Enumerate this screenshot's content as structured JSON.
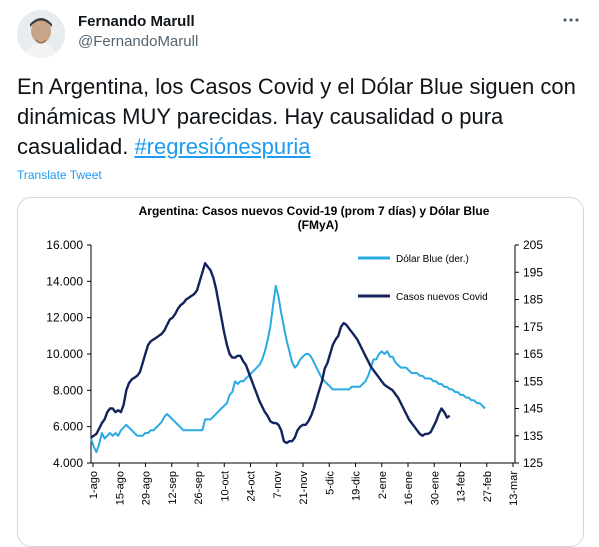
{
  "tweet": {
    "author_name": "Fernando Marull",
    "handle": "@FernandoMarull",
    "text": "En Argentina, los Casos Covid y el Dólar Blue siguen con dinámicas MUY parecidas. Hay causalidad o pura casualidad.",
    "hashtag": "#regresiónespuria",
    "translate_label": "Translate Tweet",
    "more_icon": "more-horizontal-icon"
  },
  "chart_data": {
    "type": "line",
    "title": "Argentina: Casos nuevos Covid-19 (prom 7 días) y Dólar  Blue",
    "subtitle": "(FMyA)",
    "x_tick_labels": [
      "1-ago",
      "15-ago",
      "29-ago",
      "12-sep",
      "26-sep",
      "10-oct",
      "24-oct",
      "7-nov",
      "21-nov",
      "5-dic",
      "19-dic",
      "2-ene",
      "16-ene",
      "30-ene",
      "13-feb",
      "27-feb",
      "13-mar"
    ],
    "y_left_ticks": [
      "16.000",
      "14.000",
      "12.000",
      "10.000",
      "8.000",
      "6.000",
      "4.000"
    ],
    "y_left_range": [
      4000,
      16000
    ],
    "y_right_ticks": [
      "205",
      "195",
      "185",
      "175",
      "165",
      "155",
      "145",
      "135",
      "125"
    ],
    "y_right_range": [
      125,
      205
    ],
    "grid": false,
    "legend_placement": "top-right",
    "series": [
      {
        "name": "Dólar Blue (der.)",
        "axis": "right",
        "color": "#29abe2",
        "points": [
          [
            0,
            134
          ],
          [
            1,
            131
          ],
          [
            2,
            129
          ],
          [
            3,
            132
          ],
          [
            4,
            136
          ],
          [
            5,
            134
          ],
          [
            6,
            135
          ],
          [
            7,
            136
          ],
          [
            8,
            135
          ],
          [
            9,
            136
          ],
          [
            10,
            135
          ],
          [
            11,
            137
          ],
          [
            12,
            138
          ],
          [
            13,
            139
          ],
          [
            14,
            138
          ],
          [
            15,
            137
          ],
          [
            16,
            136
          ],
          [
            17,
            135
          ],
          [
            18,
            135
          ],
          [
            19,
            135
          ],
          [
            20,
            136
          ],
          [
            21,
            136
          ],
          [
            22,
            137
          ],
          [
            23,
            137
          ],
          [
            24,
            138
          ],
          [
            25,
            139
          ],
          [
            26,
            140
          ],
          [
            27,
            142
          ],
          [
            28,
            143
          ],
          [
            29,
            142
          ],
          [
            30,
            141
          ],
          [
            31,
            140
          ],
          [
            32,
            139
          ],
          [
            33,
            138
          ],
          [
            34,
            137
          ],
          [
            35,
            137
          ],
          [
            36,
            137
          ],
          [
            37,
            137
          ],
          [
            38,
            137
          ],
          [
            39,
            137
          ],
          [
            40,
            137
          ],
          [
            41,
            137
          ],
          [
            42,
            141
          ],
          [
            43,
            141
          ],
          [
            44,
            141
          ],
          [
            45,
            142
          ],
          [
            46,
            143
          ],
          [
            47,
            144
          ],
          [
            48,
            145
          ],
          [
            49,
            146
          ],
          [
            50,
            147
          ],
          [
            51,
            150
          ],
          [
            52,
            151
          ],
          [
            53,
            155
          ],
          [
            54,
            154
          ],
          [
            55,
            155
          ],
          [
            56,
            155
          ],
          [
            57,
            156
          ],
          [
            58,
            157
          ],
          [
            59,
            158
          ],
          [
            60,
            159
          ],
          [
            61,
            160
          ],
          [
            62,
            161
          ],
          [
            63,
            163
          ],
          [
            64,
            166
          ],
          [
            65,
            170
          ],
          [
            66,
            175
          ],
          [
            67,
            183
          ],
          [
            68,
            190
          ],
          [
            69,
            186
          ],
          [
            70,
            180
          ],
          [
            71,
            175
          ],
          [
            72,
            170
          ],
          [
            73,
            166
          ],
          [
            74,
            162
          ],
          [
            75,
            160
          ],
          [
            76,
            161
          ],
          [
            77,
            163
          ],
          [
            78,
            164
          ],
          [
            79,
            165
          ],
          [
            80,
            165
          ],
          [
            81,
            164
          ],
          [
            82,
            162
          ],
          [
            83,
            160
          ],
          [
            84,
            158
          ],
          [
            85,
            156
          ],
          [
            86,
            155
          ],
          [
            87,
            154
          ],
          [
            88,
            153
          ],
          [
            89,
            152
          ],
          [
            90,
            152
          ],
          [
            91,
            152
          ],
          [
            92,
            152
          ],
          [
            93,
            152
          ],
          [
            94,
            152
          ],
          [
            95,
            152
          ],
          [
            96,
            153
          ],
          [
            97,
            153
          ],
          [
            98,
            153
          ],
          [
            99,
            153
          ],
          [
            100,
            154
          ],
          [
            101,
            155
          ],
          [
            102,
            157
          ],
          [
            103,
            160
          ],
          [
            104,
            163
          ],
          [
            105,
            163
          ],
          [
            106,
            165
          ],
          [
            107,
            166
          ],
          [
            108,
            165
          ],
          [
            109,
            166
          ],
          [
            110,
            164
          ],
          [
            111,
            164
          ],
          [
            112,
            162
          ],
          [
            113,
            161
          ],
          [
            114,
            160
          ],
          [
            115,
            160
          ],
          [
            116,
            160
          ],
          [
            117,
            159
          ],
          [
            118,
            158
          ],
          [
            119,
            158
          ],
          [
            120,
            158
          ],
          [
            121,
            157
          ],
          [
            122,
            157
          ],
          [
            123,
            156
          ],
          [
            124,
            156
          ],
          [
            125,
            156
          ],
          [
            126,
            155
          ],
          [
            127,
            155
          ],
          [
            128,
            154
          ],
          [
            129,
            154
          ],
          [
            130,
            153
          ],
          [
            131,
            153
          ],
          [
            132,
            152
          ],
          [
            133,
            152
          ],
          [
            134,
            151
          ],
          [
            135,
            151
          ],
          [
            136,
            150
          ],
          [
            137,
            150
          ],
          [
            138,
            149
          ],
          [
            139,
            149
          ],
          [
            140,
            148
          ],
          [
            141,
            148
          ],
          [
            142,
            147
          ],
          [
            143,
            147
          ],
          [
            144,
            146
          ],
          [
            145,
            145
          ]
        ]
      },
      {
        "name": "Casos nuevos Covid",
        "axis": "left",
        "color": "#13235b",
        "points": [
          [
            0,
            5400
          ],
          [
            1,
            5500
          ],
          [
            2,
            5600
          ],
          [
            3,
            5900
          ],
          [
            4,
            6200
          ],
          [
            5,
            6400
          ],
          [
            6,
            6800
          ],
          [
            7,
            7000
          ],
          [
            8,
            7000
          ],
          [
            9,
            6800
          ],
          [
            10,
            6900
          ],
          [
            11,
            6800
          ],
          [
            12,
            7200
          ],
          [
            13,
            8000
          ],
          [
            14,
            8400
          ],
          [
            15,
            8600
          ],
          [
            16,
            8700
          ],
          [
            17,
            8800
          ],
          [
            18,
            9000
          ],
          [
            19,
            9500
          ],
          [
            20,
            10000
          ],
          [
            21,
            10500
          ],
          [
            22,
            10700
          ],
          [
            23,
            10800
          ],
          [
            24,
            10900
          ],
          [
            25,
            11000
          ],
          [
            26,
            11100
          ],
          [
            27,
            11300
          ],
          [
            28,
            11600
          ],
          [
            29,
            11900
          ],
          [
            30,
            12000
          ],
          [
            31,
            12200
          ],
          [
            32,
            12500
          ],
          [
            33,
            12700
          ],
          [
            34,
            12800
          ],
          [
            35,
            13000
          ],
          [
            36,
            13100
          ],
          [
            37,
            13200
          ],
          [
            38,
            13300
          ],
          [
            39,
            13500
          ],
          [
            40,
            14000
          ],
          [
            41,
            14500
          ],
          [
            42,
            15000
          ],
          [
            43,
            14800
          ],
          [
            44,
            14600
          ],
          [
            45,
            14200
          ],
          [
            46,
            13600
          ],
          [
            47,
            12800
          ],
          [
            48,
            12000
          ],
          [
            49,
            11200
          ],
          [
            50,
            10500
          ],
          [
            51,
            10000
          ],
          [
            52,
            9800
          ],
          [
            53,
            9800
          ],
          [
            54,
            9900
          ],
          [
            55,
            9900
          ],
          [
            56,
            9600
          ],
          [
            57,
            9400
          ],
          [
            58,
            9000
          ],
          [
            59,
            8600
          ],
          [
            60,
            8200
          ],
          [
            61,
            7800
          ],
          [
            62,
            7400
          ],
          [
            63,
            7100
          ],
          [
            64,
            6800
          ],
          [
            65,
            6600
          ],
          [
            66,
            6300
          ],
          [
            67,
            6200
          ],
          [
            68,
            6200
          ],
          [
            69,
            6100
          ],
          [
            70,
            5800
          ],
          [
            71,
            5200
          ],
          [
            72,
            5100
          ],
          [
            73,
            5200
          ],
          [
            74,
            5200
          ],
          [
            75,
            5400
          ],
          [
            76,
            5800
          ],
          [
            77,
            6000
          ],
          [
            78,
            6100
          ],
          [
            79,
            6100
          ],
          [
            80,
            6300
          ],
          [
            81,
            6600
          ],
          [
            82,
            7000
          ],
          [
            83,
            7500
          ],
          [
            84,
            8000
          ],
          [
            85,
            8500
          ],
          [
            86,
            9200
          ],
          [
            87,
            9500
          ],
          [
            88,
            10000
          ],
          [
            89,
            10500
          ],
          [
            90,
            10800
          ],
          [
            91,
            11000
          ],
          [
            92,
            11500
          ],
          [
            93,
            11700
          ],
          [
            94,
            11600
          ],
          [
            95,
            11400
          ],
          [
            96,
            11200
          ],
          [
            97,
            11000
          ],
          [
            98,
            10800
          ],
          [
            99,
            10500
          ],
          [
            100,
            10200
          ],
          [
            101,
            9900
          ],
          [
            102,
            9600
          ],
          [
            103,
            9300
          ],
          [
            104,
            9100
          ],
          [
            105,
            8900
          ],
          [
            106,
            8700
          ],
          [
            107,
            8500
          ],
          [
            108,
            8300
          ],
          [
            109,
            8200
          ],
          [
            110,
            8100
          ],
          [
            111,
            8000
          ],
          [
            112,
            7800
          ],
          [
            113,
            7600
          ],
          [
            114,
            7300
          ],
          [
            115,
            7000
          ],
          [
            116,
            6700
          ],
          [
            117,
            6400
          ],
          [
            118,
            6200
          ],
          [
            119,
            6000
          ],
          [
            120,
            5800
          ],
          [
            121,
            5600
          ],
          [
            122,
            5500
          ],
          [
            123,
            5600
          ],
          [
            124,
            5600
          ],
          [
            125,
            5700
          ],
          [
            126,
            6000
          ],
          [
            127,
            6300
          ],
          [
            128,
            6700
          ],
          [
            129,
            7000
          ],
          [
            130,
            6800
          ],
          [
            131,
            6500
          ],
          [
            132,
            6600
          ]
        ]
      }
    ]
  }
}
